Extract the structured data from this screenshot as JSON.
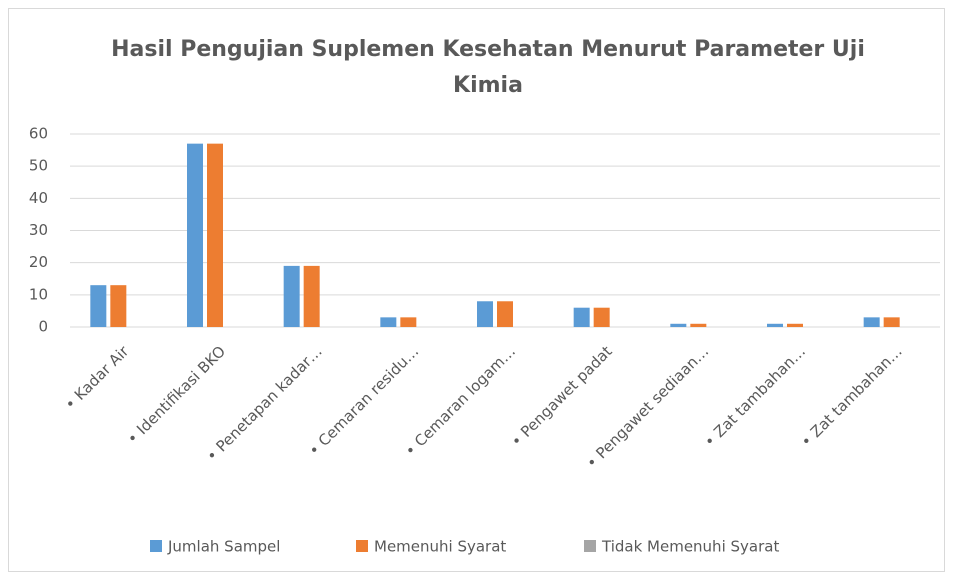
{
  "chart_data": {
    "type": "bar",
    "title": "Hasil Pengujian Suplemen Kesehatan Menurut Parameter Uji Kimia",
    "categories": [
      "• Kadar Air",
      "• Identifikasi BKO",
      "• Penetapan kadar…",
      "• Cemaran residu…",
      "• Cemaran logam…",
      "• Pengawet padat",
      "• Pengawet sediaan…",
      "• Zat tambahan…",
      "• Zat tambahan…"
    ],
    "series": [
      {
        "name": "Jumlah Sampel",
        "color": "#5b9bd5",
        "values": [
          13,
          57,
          19,
          3,
          8,
          6,
          1,
          1,
          3
        ]
      },
      {
        "name": "Memenuhi Syarat",
        "color": "#ed7d31",
        "values": [
          13,
          57,
          19,
          3,
          8,
          6,
          1,
          1,
          3
        ]
      },
      {
        "name": "Tidak Memenuhi Syarat",
        "color": "#a5a5a5",
        "values": [
          0,
          0,
          0,
          0,
          0,
          0,
          0,
          0,
          0
        ]
      }
    ],
    "ylim": [
      0,
      60
    ],
    "yticks": [
      0,
      10,
      20,
      30,
      40,
      50,
      60
    ],
    "grid": true,
    "legend": "bottom"
  }
}
